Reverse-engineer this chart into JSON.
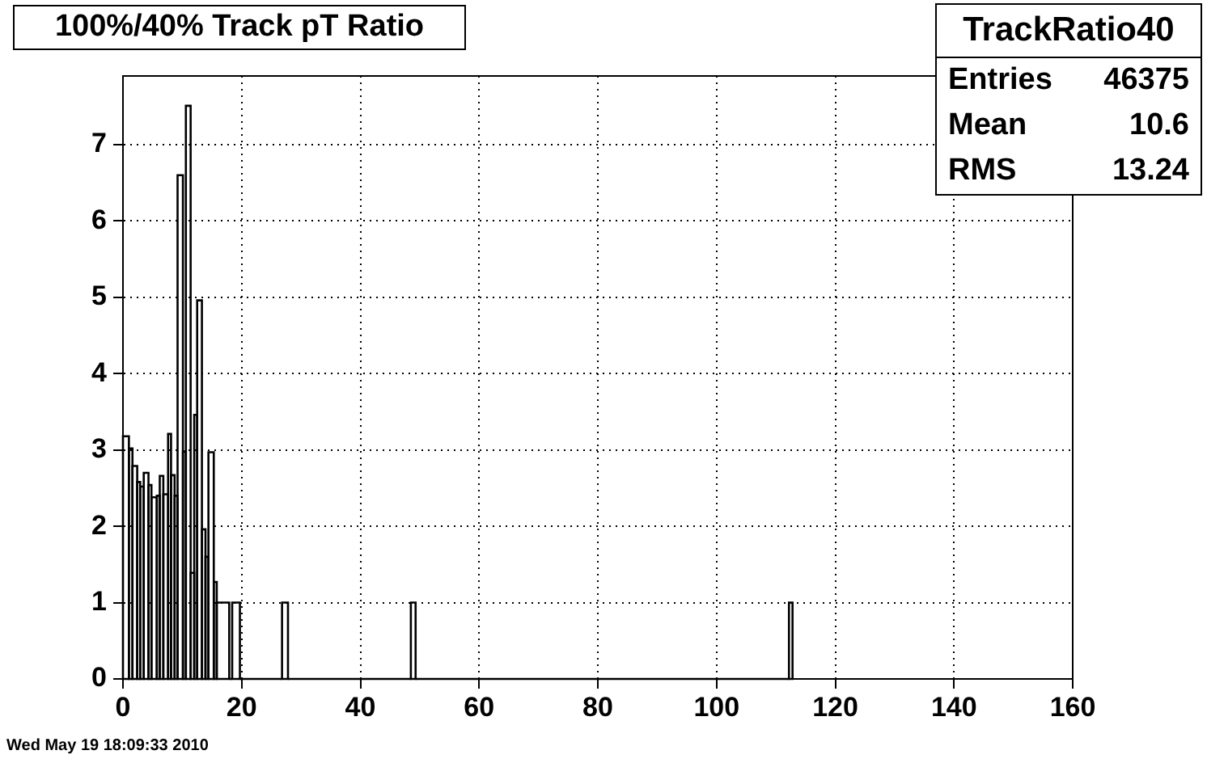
{
  "chart_data": {
    "type": "histogram",
    "title": "100%/40% Track pT Ratio",
    "bins": [
      0,
      1.0,
      1.6,
      2.4,
      2.9,
      3.5,
      4.3,
      4.8,
      5.7,
      6.2,
      6.8,
      7.6,
      8.1,
      8.7,
      9.2,
      10.1,
      10.6,
      11.4,
      12.0,
      12.5,
      13.3,
      13.9,
      14.4,
      15.3,
      15.8,
      17.9,
      18.4,
      19.7,
      26.8,
      27.8,
      48.5,
      49.3,
      112.2,
      112.8
    ],
    "values": [
      3.18,
      3.02,
      2.79,
      2.58,
      2.52,
      2.7,
      2.54,
      2.38,
      2.4,
      2.66,
      2.42,
      3.21,
      2.67,
      2.4,
      6.6,
      2.98,
      7.51,
      1.39,
      3.46,
      4.96,
      1.96,
      1.6,
      2.97,
      1.27,
      1.0,
      0,
      1.0,
      0,
      1.0,
      0,
      1.0,
      0,
      1.0
    ],
    "color": "#000000",
    "xlim": [
      0,
      160
    ],
    "xticks": [
      0,
      20,
      40,
      60,
      80,
      100,
      120,
      140,
      160
    ],
    "ylim": [
      0,
      7.9
    ],
    "yticks": [
      0,
      1,
      2,
      3,
      4,
      5,
      6,
      7
    ],
    "grid": true,
    "annotations": [
      "TrackRatio40",
      "Entries",
      "46375",
      "Mean",
      "10.6",
      "RMS",
      "13.24",
      "Wed May 19 18:09:33 2010"
    ]
  }
}
